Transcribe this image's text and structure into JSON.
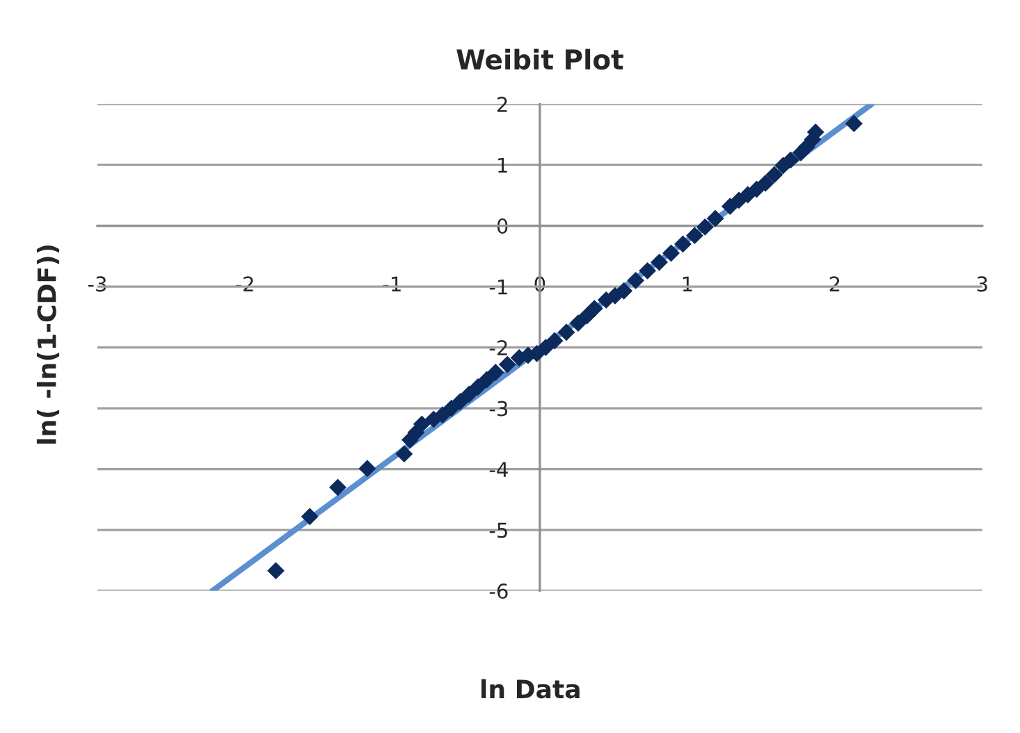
{
  "chart_data": {
    "type": "scatter",
    "title": "Weibit Plot",
    "xlabel": "ln Data",
    "ylabel": "ln( -ln(1-CDF))",
    "xlim": [
      -3,
      3
    ],
    "ylim": [
      -6,
      2
    ],
    "xticks": [
      -3,
      -2,
      -1,
      0,
      1,
      2,
      3
    ],
    "yticks": [
      -6,
      -5,
      -4,
      -3,
      -2,
      -1,
      0,
      1,
      2
    ],
    "grid": "y",
    "legend": false,
    "series": [
      {
        "type": "line",
        "color": "#5b8fd0",
        "marker": "none",
        "x": [
          -2.22,
          2.25
        ],
        "values": [
          -6,
          2
        ]
      },
      {
        "color": "#0d2a5c",
        "marker": "diamond",
        "x": [
          -1.79,
          -1.56,
          -1.37,
          -1.17,
          -0.92,
          -0.88,
          -0.84,
          -0.8,
          -0.72,
          -0.66,
          -0.6,
          -0.54,
          -0.48,
          -0.42,
          -0.36,
          -0.3,
          -0.22,
          -0.14,
          -0.08,
          -0.02,
          0.04,
          0.1,
          0.18,
          0.26,
          0.32,
          0.37,
          0.45,
          0.51,
          0.57,
          0.65,
          0.73,
          0.81,
          0.89,
          0.97,
          1.05,
          1.12,
          1.19,
          1.29,
          1.35,
          1.41,
          1.47,
          1.53,
          1.59,
          1.65,
          1.7,
          1.77,
          1.81,
          1.85,
          1.87,
          2.13
        ],
        "values": [
          -5.67,
          -4.78,
          -4.3,
          -3.99,
          -3.75,
          -3.52,
          -3.4,
          -3.26,
          -3.18,
          -3.11,
          -3.0,
          -2.89,
          -2.77,
          -2.65,
          -2.53,
          -2.41,
          -2.28,
          -2.17,
          -2.13,
          -2.1,
          -2.0,
          -1.89,
          -1.75,
          -1.6,
          -1.48,
          -1.36,
          -1.22,
          -1.15,
          -1.07,
          -0.9,
          -0.74,
          -0.6,
          -0.45,
          -0.3,
          -0.16,
          -0.02,
          0.12,
          0.32,
          0.42,
          0.51,
          0.6,
          0.7,
          0.84,
          0.99,
          1.08,
          1.2,
          1.3,
          1.42,
          1.54,
          1.68
        ]
      }
    ]
  }
}
